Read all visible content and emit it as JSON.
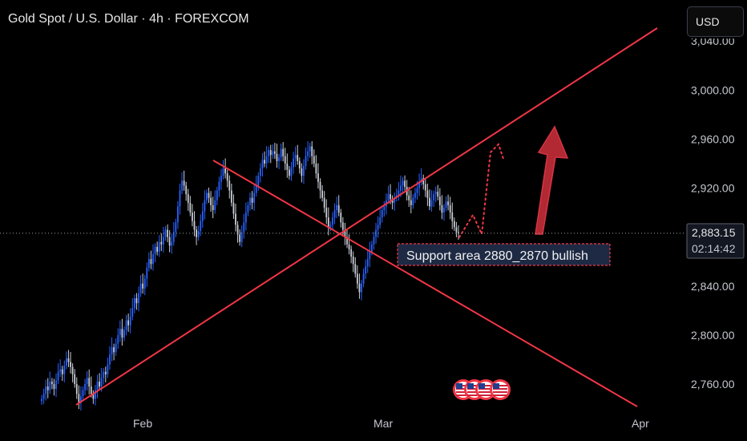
{
  "header": {
    "title": "Gold Spot / U.S. Dollar · 4h · FOREXCOM",
    "currency": "USD"
  },
  "price_badge": {
    "price": "2,883.15",
    "countdown": "02:14:42"
  },
  "annotation": {
    "text": "Support area 2880_2870 bullish"
  },
  "colors": {
    "up": "#2962ff",
    "down": "#c9cdd6",
    "trendline": "#f23645",
    "arrow": "#b22833",
    "label_bg": "#1e2a44",
    "badge_bg": "#131722",
    "background": "#000000"
  },
  "icons": [
    "us-flag-icon",
    "us-flag-icon",
    "us-flag-icon",
    "us-flag-icon"
  ],
  "chart_data": {
    "type": "candlestick",
    "title": "Gold Spot / U.S. Dollar · 4h · FOREXCOM",
    "ylim": [
      2740,
      3035
    ],
    "y_ticks": [
      2760,
      2800,
      2840,
      2880,
      2920,
      2960,
      3000
    ],
    "y_tick_labels": [
      "2,760.00",
      "2,800.00",
      "2,840.00",
      "2,880.00",
      "2,920.00",
      "2,960.00",
      "3,000.00"
    ],
    "x_tick_labels": [
      "Feb",
      "Mar",
      "Apr"
    ],
    "last_price": 2883.15,
    "series": [
      {
        "name": "Gold Spot / U.S. Dollar",
        "close": [
          2748,
          2752,
          2758,
          2755,
          2762,
          2760,
          2756,
          2763,
          2770,
          2772,
          2768,
          2775,
          2781,
          2778,
          2774,
          2768,
          2760,
          2752,
          2745,
          2750,
          2755,
          2760,
          2765,
          2758,
          2752,
          2748,
          2755,
          2762,
          2758,
          2765,
          2770,
          2768,
          2776,
          2784,
          2790,
          2786,
          2793,
          2800,
          2805,
          2798,
          2804,
          2812,
          2808,
          2815,
          2822,
          2830,
          2826,
          2834,
          2842,
          2838,
          2846,
          2855,
          2862,
          2858,
          2866,
          2872,
          2868,
          2876,
          2874,
          2880,
          2886,
          2880,
          2873,
          2876,
          2884,
          2892,
          2905,
          2918,
          2926,
          2922,
          2915,
          2908,
          2900,
          2893,
          2886,
          2880,
          2885,
          2893,
          2901,
          2910,
          2916,
          2912,
          2906,
          2902,
          2910,
          2918,
          2925,
          2930,
          2936,
          2932,
          2926,
          2918,
          2908,
          2899,
          2890,
          2882,
          2876,
          2884,
          2892,
          2900,
          2906,
          2912,
          2908,
          2916,
          2922,
          2930,
          2936,
          2943,
          2940,
          2946,
          2951,
          2947,
          2950,
          2948,
          2942,
          2945,
          2952,
          2946,
          2940,
          2935,
          2930,
          2937,
          2944,
          2947,
          2942,
          2936,
          2930,
          2938,
          2946,
          2950,
          2954,
          2946,
          2940,
          2932,
          2925,
          2918,
          2912,
          2904,
          2896,
          2888,
          2890,
          2896,
          2902,
          2906,
          2900,
          2892,
          2886,
          2880,
          2874,
          2870,
          2864,
          2858,
          2850,
          2842,
          2835,
          2842,
          2850,
          2856,
          2862,
          2868,
          2874,
          2880,
          2886,
          2890,
          2896,
          2902,
          2905,
          2910,
          2915,
          2911,
          2908,
          2912,
          2914,
          2918,
          2922,
          2926,
          2921,
          2914,
          2910,
          2906,
          2912,
          2916,
          2920,
          2925,
          2928,
          2923,
          2918,
          2912,
          2905,
          2910,
          2915,
          2917,
          2913,
          2906,
          2900,
          2904,
          2909,
          2906,
          2900,
          2893,
          2888,
          2884,
          2883.15
        ]
      },
      {
        "name": "Ascending trendline",
        "x": [
          "Jan 22",
          "Apr 1"
        ],
        "values": [
          2742,
          3025
        ]
      },
      {
        "name": "Descending trendline",
        "x": [
          "Jan 30",
          "Apr 1"
        ],
        "values": [
          2945,
          2743
        ]
      },
      {
        "name": "Projected path",
        "values": [
          2878,
          2900,
          2870,
          2913,
          2955
        ]
      }
    ],
    "annotations": [
      "Support area 2880_2870 bullish"
    ]
  }
}
